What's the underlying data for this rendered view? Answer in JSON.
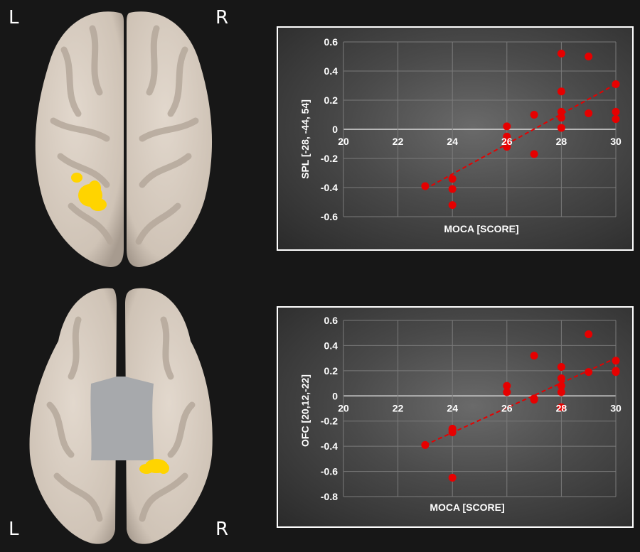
{
  "labels": {
    "top_left": "L",
    "top_right": "R",
    "bottom_left": "L",
    "bottom_right": "R"
  },
  "colors": {
    "background": "#171717",
    "brain_surface": "#d7ccc0",
    "brain_sulcus": "#b6aa9d",
    "activation": "#ffd400",
    "mask_gray": "#a7a9ac",
    "point": "#e60000",
    "trendline": "#e60000"
  },
  "chart_data": [
    {
      "type": "scatter",
      "title": "",
      "xlabel": "MOCA [SCORE]",
      "ylabel": "SPL [-28, -44, 54]",
      "xlim": [
        20,
        30
      ],
      "ylim": [
        -0.6,
        0.6
      ],
      "xticks": [
        20,
        22,
        24,
        26,
        28,
        30
      ],
      "yticks": [
        0.6,
        0.4,
        0.2,
        0,
        -0.2,
        -0.4,
        -0.6
      ],
      "ytick_labels": [
        "0.6",
        "0.4",
        "0.2",
        "0",
        "-0.2",
        "-0.4",
        "-0.6"
      ],
      "grid": true,
      "trendline": {
        "x": [
          23,
          30
        ],
        "y": [
          -0.41,
          0.31
        ]
      },
      "points": [
        {
          "x": 23,
          "y": -0.39
        },
        {
          "x": 24,
          "y": -0.34
        },
        {
          "x": 24,
          "y": -0.41
        },
        {
          "x": 24,
          "y": -0.52
        },
        {
          "x": 26,
          "y": 0.02
        },
        {
          "x": 26,
          "y": -0.05
        },
        {
          "x": 26,
          "y": -0.09
        },
        {
          "x": 26,
          "y": -0.12
        },
        {
          "x": 27,
          "y": 0.1
        },
        {
          "x": 27,
          "y": -0.17
        },
        {
          "x": 28,
          "y": 0.52
        },
        {
          "x": 28,
          "y": 0.26
        },
        {
          "x": 28,
          "y": 0.12
        },
        {
          "x": 28,
          "y": 0.08
        },
        {
          "x": 28,
          "y": 0.01
        },
        {
          "x": 29,
          "y": 0.5
        },
        {
          "x": 29,
          "y": 0.11
        },
        {
          "x": 30,
          "y": 0.31
        },
        {
          "x": 30,
          "y": 0.12
        },
        {
          "x": 30,
          "y": 0.07
        }
      ]
    },
    {
      "type": "scatter",
      "title": "",
      "xlabel": "MOCA [SCORE]",
      "ylabel": "OFC [20,12,-22]",
      "xlim": [
        20,
        30
      ],
      "ylim": [
        -0.8,
        0.6
      ],
      "xticks": [
        20,
        22,
        24,
        26,
        28,
        30
      ],
      "yticks": [
        0.6,
        0.4,
        0.2,
        0,
        -0.2,
        -0.4,
        -0.6,
        -0.8
      ],
      "ytick_labels": [
        "0.6",
        "0.4",
        "0.2",
        "0",
        "-0.2",
        "-0.4",
        "-0.6",
        "-0.8"
      ],
      "grid": true,
      "trendline": {
        "x": [
          23,
          30
        ],
        "y": [
          -0.39,
          0.3
        ]
      },
      "points": [
        {
          "x": 23,
          "y": -0.39
        },
        {
          "x": 24,
          "y": -0.26
        },
        {
          "x": 24,
          "y": -0.27
        },
        {
          "x": 24,
          "y": -0.29
        },
        {
          "x": 24,
          "y": -0.65
        },
        {
          "x": 26,
          "y": 0.08
        },
        {
          "x": 26,
          "y": 0.03
        },
        {
          "x": 27,
          "y": 0.32
        },
        {
          "x": 27,
          "y": -0.02
        },
        {
          "x": 27,
          "y": -0.03
        },
        {
          "x": 28,
          "y": 0.23
        },
        {
          "x": 28,
          "y": 0.14
        },
        {
          "x": 28,
          "y": 0.08
        },
        {
          "x": 28,
          "y": 0.03
        },
        {
          "x": 28,
          "y": -0.09
        },
        {
          "x": 29,
          "y": 0.49
        },
        {
          "x": 29,
          "y": 0.19
        },
        {
          "x": 30,
          "y": 0.28
        },
        {
          "x": 30,
          "y": 0.2
        },
        {
          "x": 30,
          "y": 0.19
        }
      ]
    }
  ]
}
